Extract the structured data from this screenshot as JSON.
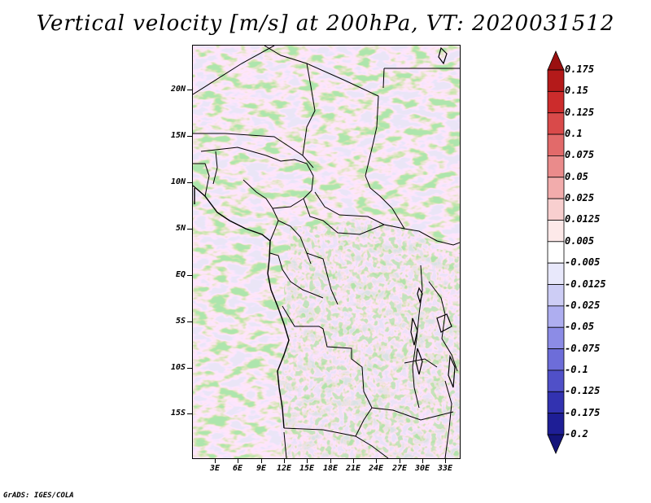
{
  "title": "Vertical velocity [m/s] at 200hPa, VT: 2020031512",
  "footer": "GrADS: IGES/COLA",
  "axes": {
    "lat_labels": [
      "20N",
      "15N",
      "10N",
      "5N",
      "EQ",
      "5S",
      "10S",
      "15S"
    ],
    "lon_labels": [
      "3E",
      "6E",
      "9E",
      "12E",
      "15E",
      "18E",
      "21E",
      "24E",
      "27E",
      "30E",
      "33E"
    ]
  },
  "colorbar": {
    "labels": [
      "0.175",
      "0.15",
      "0.125",
      "0.1",
      "0.075",
      "0.05",
      "0.025",
      "0.0125",
      "0.005",
      "-0.005",
      "-0.0125",
      "-0.025",
      "-0.05",
      "-0.075",
      "-0.1",
      "-0.125",
      "-0.175",
      "-0.2"
    ],
    "colors": [
      "#9a1010",
      "#b41a1a",
      "#cc2c2c",
      "#d94a4a",
      "#e26a6a",
      "#ea8b8b",
      "#f2acac",
      "#f8cfcf",
      "#fde9e9",
      "#ffffff",
      "#e8e8fb",
      "#cdcdf5",
      "#aeaef0",
      "#8c8ce6",
      "#6d6dd9",
      "#5050c8",
      "#3232b0",
      "#1e1e96",
      "#14147a"
    ]
  }
}
